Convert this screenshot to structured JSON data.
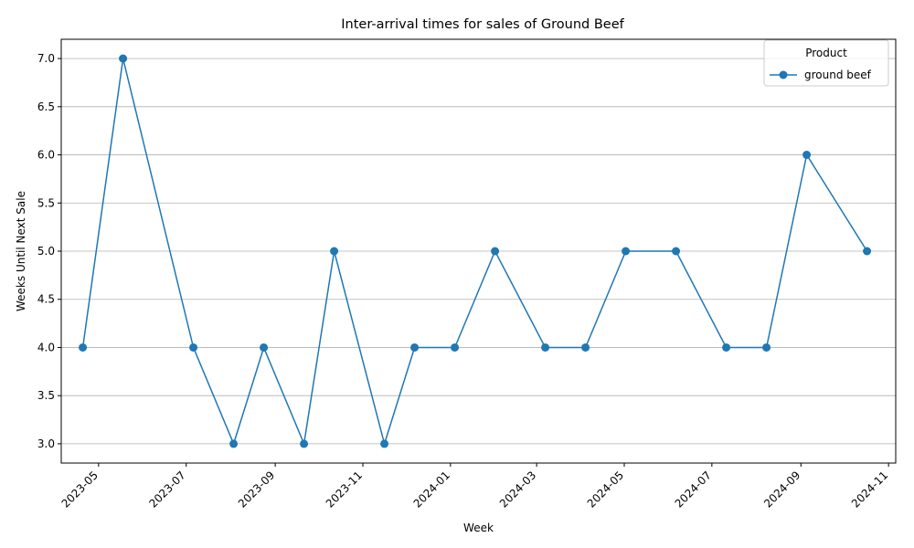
{
  "chart_data": {
    "type": "line",
    "title": "Inter-arrival times for sales of Ground Beef",
    "xlabel": "Week",
    "ylabel": "Weeks Until Next Sale",
    "x_ticks": [
      "2023-05",
      "2023-07",
      "2023-09",
      "2023-11",
      "2024-01",
      "2024-03",
      "2024-05",
      "2024-07",
      "2024-09",
      "2024-11"
    ],
    "x_tick_dates": [
      "2023-05-01",
      "2023-07-01",
      "2023-09-01",
      "2023-11-01",
      "2024-01-01",
      "2024-03-01",
      "2024-05-01",
      "2024-07-01",
      "2024-09-01",
      "2024-11-01"
    ],
    "y_ticks": [
      "3.0",
      "3.5",
      "4.0",
      "4.5",
      "5.0",
      "5.5",
      "6.0",
      "6.5",
      "7.0"
    ],
    "xlim": [
      "2023-04-05",
      "2024-11-06"
    ],
    "ylim": [
      2.8,
      7.2
    ],
    "grid": "y",
    "legend": {
      "title": "Product",
      "placement": "top-right"
    },
    "series": [
      {
        "name": "ground beef",
        "color": "#1f77b4",
        "marker": "circle",
        "points": [
          {
            "x": "2023-04-20",
            "y": 4
          },
          {
            "x": "2023-05-18",
            "y": 7
          },
          {
            "x": "2023-07-06",
            "y": 4
          },
          {
            "x": "2023-08-03",
            "y": 3
          },
          {
            "x": "2023-08-24",
            "y": 4
          },
          {
            "x": "2023-09-21",
            "y": 3
          },
          {
            "x": "2023-10-12",
            "y": 5
          },
          {
            "x": "2023-11-16",
            "y": 3
          },
          {
            "x": "2023-12-07",
            "y": 4
          },
          {
            "x": "2024-01-04",
            "y": 4
          },
          {
            "x": "2024-02-01",
            "y": 5
          },
          {
            "x": "2024-03-07",
            "y": 4
          },
          {
            "x": "2024-04-04",
            "y": 4
          },
          {
            "x": "2024-05-02",
            "y": 5
          },
          {
            "x": "2024-06-06",
            "y": 5
          },
          {
            "x": "2024-07-11",
            "y": 4
          },
          {
            "x": "2024-08-08",
            "y": 4
          },
          {
            "x": "2024-09-05",
            "y": 6
          },
          {
            "x": "2024-10-17",
            "y": 5
          }
        ]
      }
    ]
  }
}
